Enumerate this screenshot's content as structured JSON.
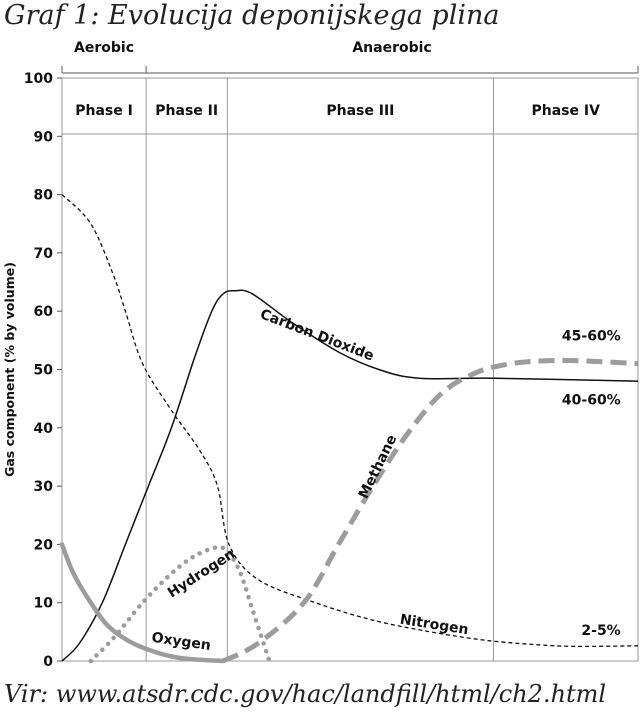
{
  "page": {
    "title": "Graf 1: Evolucija deponijskega plina",
    "caption": "Vir: www.atsdr.cdc.gov/hac/landfill/html/ch2.html"
  },
  "chart_data": {
    "type": "line",
    "ylabel": "Gas component (% by volume)",
    "ylim": [
      0,
      100
    ],
    "yticks": [
      0,
      10,
      20,
      30,
      40,
      50,
      60,
      70,
      80,
      90,
      100
    ],
    "x_domain": [
      0,
      100
    ],
    "grid": false,
    "regions": [
      {
        "label": "Aerobic",
        "start": 0,
        "end": 14.6
      },
      {
        "label": "Anaerobic",
        "start": 14.6,
        "end": 100
      }
    ],
    "phases": [
      {
        "label": "Phase I",
        "start": 0,
        "end": 14.6
      },
      {
        "label": "Phase II",
        "start": 14.6,
        "end": 28.7
      },
      {
        "label": "Phase III",
        "start": 28.7,
        "end": 74.9
      },
      {
        "label": "Phase IV",
        "start": 74.9,
        "end": 100
      }
    ],
    "series": [
      {
        "name": "Nitrogen",
        "style": "dashed-thin",
        "color": "#111111",
        "x": [
          0,
          5,
          9,
          11,
          14,
          19,
          24,
          27,
          29,
          34,
          44,
          54,
          64,
          74,
          84,
          90,
          100
        ],
        "y": [
          80,
          75,
          66,
          60,
          51,
          43,
          36,
          30,
          20,
          14,
          10,
          7,
          5,
          3.5,
          2.7,
          2.5,
          2.6
        ]
      },
      {
        "name": "Carbon Dioxide",
        "style": "solid-thin",
        "color": "#111111",
        "x": [
          0,
          3,
          7,
          11,
          15,
          19,
          23,
          26,
          28,
          30,
          33,
          40,
          48,
          55,
          62,
          75,
          100
        ],
        "y": [
          0,
          3,
          10,
          20,
          30,
          40,
          52,
          60,
          63,
          63.5,
          63,
          58,
          53,
          50,
          48.5,
          48.5,
          48
        ]
      },
      {
        "name": "Methane",
        "style": "dashed-thick",
        "color": "#9c9c9c",
        "x": [
          28,
          34,
          42,
          48,
          54,
          60,
          66,
          72,
          78,
          84,
          90,
          100
        ],
        "y": [
          0,
          3,
          10,
          20,
          30,
          39,
          46,
          49.5,
          51,
          51.5,
          51.5,
          51
        ]
      },
      {
        "name": "Hydrogen",
        "style": "dotted-thick",
        "color": "#9c9c9c",
        "x": [
          5,
          9,
          14,
          19,
          23,
          27,
          29,
          31,
          33,
          35,
          36
        ],
        "y": [
          0,
          4,
          10,
          15,
          18,
          19.5,
          18.5,
          15,
          9,
          3,
          0
        ]
      },
      {
        "name": "Oxygen",
        "style": "solid-thick",
        "color": "#9c9c9c",
        "x": [
          0,
          2,
          5,
          8,
          12,
          16,
          20,
          24,
          28
        ],
        "y": [
          20,
          15,
          10,
          6,
          3.2,
          1.6,
          0.6,
          0.2,
          0
        ]
      }
    ],
    "annotations": [
      {
        "text": "45-60%",
        "x": 97,
        "y": 55,
        "anchor": "end"
      },
      {
        "text": "40-60%",
        "x": 97,
        "y": 44,
        "anchor": "end"
      },
      {
        "text": "2-5%",
        "x": 97,
        "y": 4.5,
        "anchor": "end"
      }
    ]
  }
}
